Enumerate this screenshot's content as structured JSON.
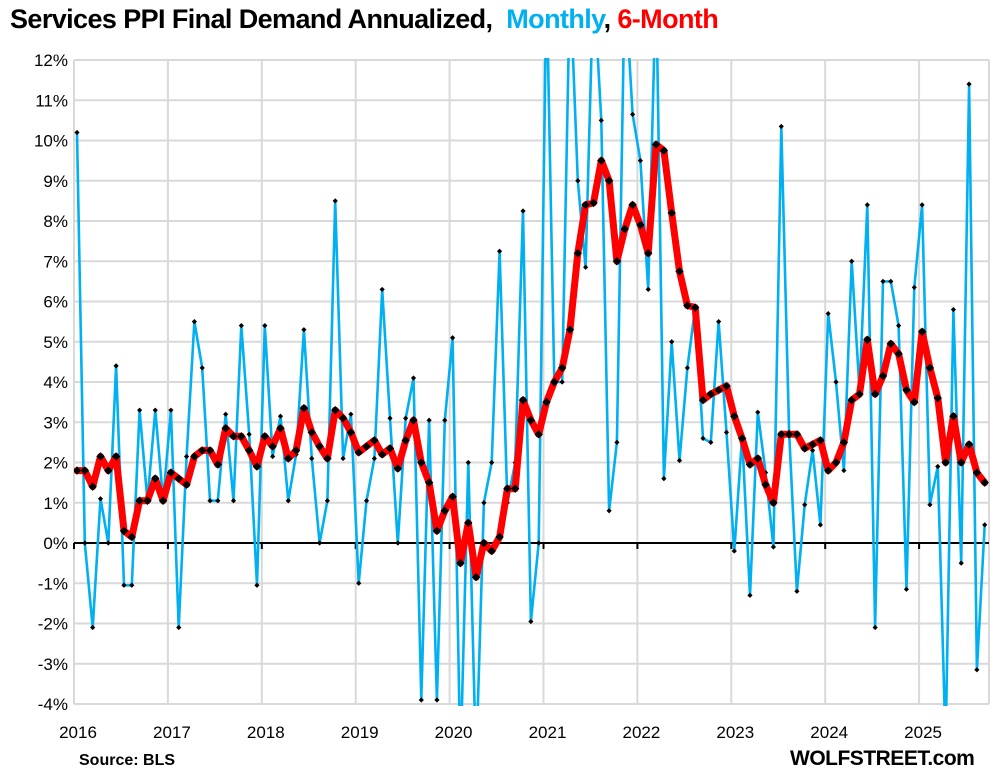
{
  "chart_data": {
    "type": "line",
    "title": {
      "prefix": "Services PPI Final Demand Annualized,",
      "monthly_label": "Monthly",
      "separator": ",",
      "sixmonth_label": "6-Month"
    },
    "xlabel": "",
    "ylabel": "",
    "ylim": [
      -4,
      12
    ],
    "y_ticks": [
      12,
      11,
      10,
      9,
      8,
      7,
      6,
      5,
      4,
      3,
      2,
      1,
      0,
      -1,
      -2,
      -3,
      -4
    ],
    "y_tick_labels": [
      "12%",
      "11%",
      "10%",
      "9%",
      "8%",
      "7%",
      "6%",
      "5%",
      "4%",
      "3%",
      "2%",
      "1%",
      "0%",
      "-1%",
      "-2%",
      "-3%",
      "-4%"
    ],
    "x_tick_labels": [
      "2016",
      "2017",
      "2018",
      "2019",
      "2020",
      "2021",
      "2022",
      "2023",
      "2024",
      "2025"
    ],
    "x_start": "2016-01",
    "x_end": "2025-09",
    "frequency": "monthly",
    "grid": true,
    "legend": "in-title",
    "series": [
      {
        "name": "Monthly",
        "color": "#00b0f0",
        "values": [
          10.2,
          0.0,
          -2.1,
          1.1,
          0.0,
          4.4,
          -1.05,
          -1.05,
          3.3,
          1.05,
          3.3,
          1.05,
          3.3,
          -2.1,
          2.15,
          5.5,
          4.35,
          1.05,
          1.05,
          3.2,
          1.05,
          5.4,
          2.7,
          -1.05,
          5.4,
          2.15,
          3.15,
          1.05,
          2.2,
          5.3,
          2.1,
          0.0,
          1.05,
          8.5,
          2.1,
          3.2,
          -1.0,
          1.05,
          2.1,
          6.3,
          3.1,
          0.0,
          3.1,
          4.1,
          -3.9,
          3.05,
          -3.9,
          3.05,
          5.1,
          -5.5,
          2.0,
          -5.5,
          1.0,
          2.0,
          7.25,
          1.0,
          2.0,
          8.25,
          -1.95,
          0.0,
          14.0,
          4.0,
          4.0,
          14.0,
          9.0,
          6.85,
          14.0,
          10.5,
          0.8,
          2.5,
          14.0,
          10.65,
          9.5,
          6.3,
          14.0,
          1.6,
          5.0,
          2.05,
          4.35,
          5.85,
          2.6,
          2.5,
          5.5,
          2.75,
          -0.2,
          2.65,
          -1.3,
          3.25,
          1.75,
          -0.1,
          10.35,
          2.75,
          -1.2,
          0.95,
          2.3,
          0.45,
          5.7,
          4.0,
          1.8,
          7.0,
          3.8,
          8.4,
          -2.1,
          6.5,
          6.5,
          5.4,
          -1.15,
          6.35,
          8.4,
          0.95,
          1.9,
          -5.0,
          5.8,
          -0.5,
          11.4,
          -3.15,
          0.45
        ]
      },
      {
        "name": "6-Month",
        "color": "#ff0000",
        "values": [
          1.8,
          1.8,
          1.4,
          2.15,
          1.8,
          2.15,
          0.3,
          0.15,
          1.05,
          1.05,
          1.6,
          1.05,
          1.75,
          1.6,
          1.45,
          2.15,
          2.3,
          2.3,
          1.95,
          2.85,
          2.65,
          2.65,
          2.3,
          1.9,
          2.65,
          2.4,
          2.85,
          2.1,
          2.3,
          3.35,
          2.75,
          2.4,
          2.1,
          3.3,
          3.1,
          2.75,
          2.25,
          2.4,
          2.55,
          2.2,
          2.35,
          1.85,
          2.55,
          3.05,
          2.0,
          1.5,
          0.3,
          0.8,
          1.15,
          -0.5,
          0.5,
          -0.85,
          0.0,
          -0.2,
          0.15,
          1.35,
          1.35,
          3.55,
          3.05,
          2.7,
          3.5,
          4.0,
          4.35,
          5.3,
          7.2,
          8.4,
          8.45,
          9.5,
          9.0,
          7.0,
          7.8,
          8.4,
          7.9,
          7.2,
          9.9,
          9.75,
          8.2,
          6.75,
          5.9,
          5.85,
          3.55,
          3.7,
          3.8,
          3.9,
          3.15,
          2.6,
          1.95,
          2.1,
          1.45,
          1.0,
          2.7,
          2.7,
          2.7,
          2.35,
          2.45,
          2.55,
          1.8,
          2.0,
          2.5,
          3.55,
          3.7,
          5.05,
          3.7,
          4.15,
          4.95,
          4.7,
          3.8,
          3.5,
          5.25,
          4.35,
          3.6,
          2.0,
          3.15,
          2.0,
          2.45,
          1.75,
          1.5
        ]
      }
    ]
  },
  "footer": {
    "source": "Source: BLS",
    "brand": "WOLFSTREET.com"
  }
}
